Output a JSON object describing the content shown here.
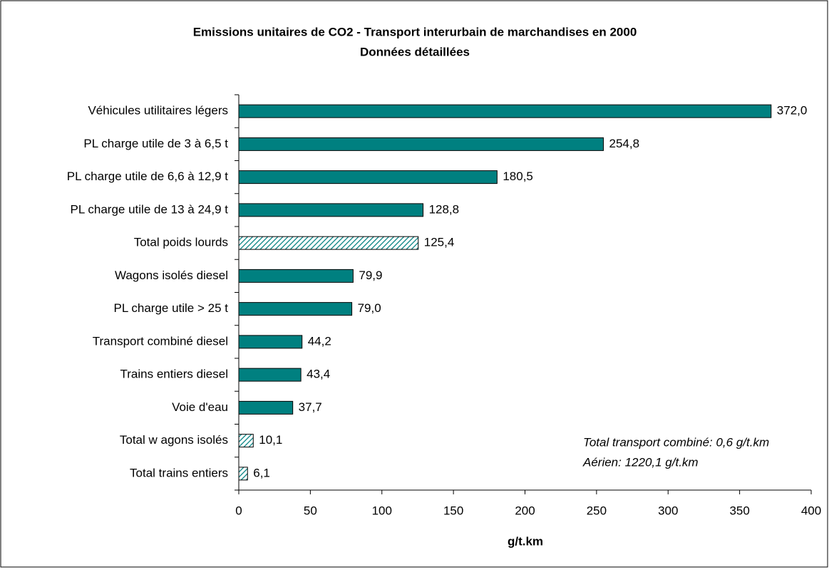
{
  "chart_data": {
    "type": "bar",
    "orientation": "horizontal",
    "title": "Emissions unitaires de CO2 - Transport interurbain de marchandises en 2000",
    "subtitle": "Données détaillées",
    "categories": [
      "Véhicules utilitaires légers",
      "PL charge utile de 3 à 6,5 t",
      "PL charge utile de 6,6 à 12,9 t",
      "PL charge utile de 13 à 24,9 t",
      "Total poids lourds",
      "Wagons isolés diesel",
      "PL charge utile > 25 t",
      "Transport combiné diesel",
      "Trains entiers diesel",
      "Voie d'eau",
      "Total w agons isolés",
      "Total trains entiers"
    ],
    "values": [
      372.0,
      254.8,
      180.5,
      128.8,
      125.4,
      79.9,
      79.0,
      44.2,
      43.4,
      37.7,
      10.1,
      6.1
    ],
    "value_labels": [
      "372,0",
      "254,8",
      "180,5",
      "128,8",
      "125,4",
      "79,9",
      "79,0",
      "44,2",
      "43,4",
      "37,7",
      "10,1",
      "6,1"
    ],
    "hatched": [
      false,
      false,
      false,
      false,
      true,
      false,
      false,
      false,
      false,
      false,
      true,
      true
    ],
    "color": "#008080",
    "xlabel": "g/t.km",
    "xlim": [
      0,
      400
    ],
    "xticks": [
      0,
      50,
      100,
      150,
      200,
      250,
      300,
      350,
      400
    ],
    "annotations": [
      "Total transport combiné: 0,6 g/t.km",
      "Aérien:  1220,1 g/t.km"
    ]
  }
}
